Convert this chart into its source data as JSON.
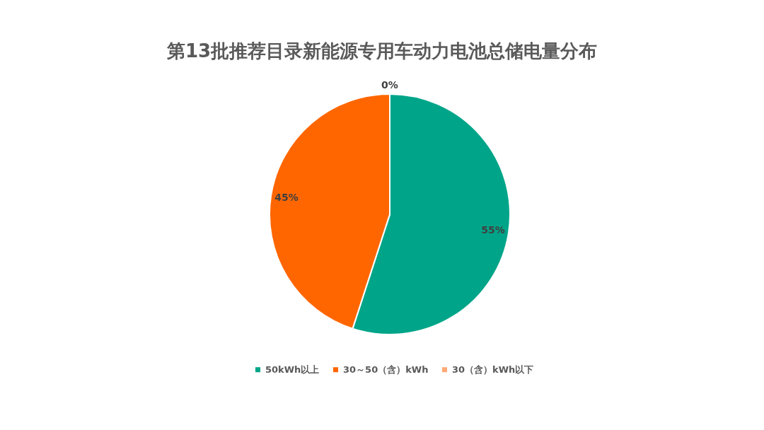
{
  "chart_data": {
    "type": "pie",
    "title": "第13批推荐目录新能源专用车动力电池总储电量分布",
    "categories": [
      "50kWh以上",
      "30～50（含）kWh",
      "30（含）kWh以下"
    ],
    "values": [
      55,
      45,
      0
    ],
    "colors": [
      "#00a589",
      "#ff6600",
      "#ffaa77"
    ],
    "value_labels": [
      "55%",
      "45%",
      "0%"
    ],
    "legend": "bottom"
  }
}
